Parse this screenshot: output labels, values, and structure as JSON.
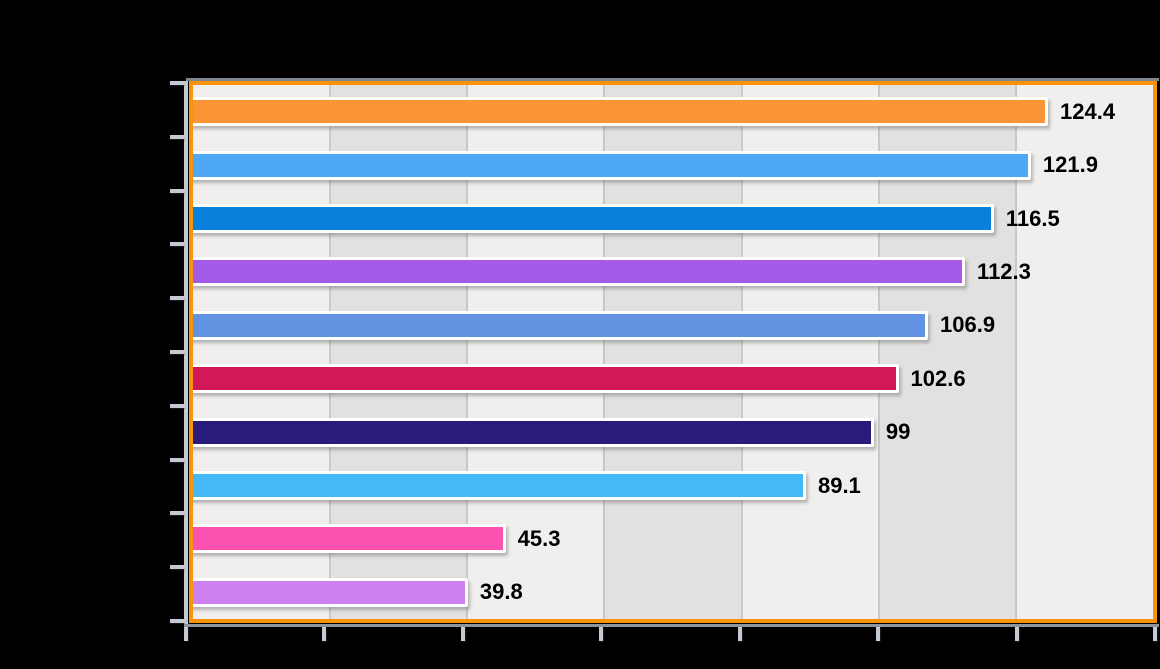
{
  "chart_data": {
    "type": "bar",
    "orientation": "horizontal",
    "values": [
      124.4,
      121.9,
      116.5,
      112.3,
      106.9,
      102.6,
      99,
      89.1,
      45.3,
      39.8
    ],
    "value_labels": [
      "124.4",
      "121.9",
      "116.5",
      "112.3",
      "106.9",
      "102.6",
      "99",
      "89.1",
      "45.3",
      "39.8"
    ],
    "bar_colors": [
      "#F99535",
      "#4FA8F3",
      "#0880DC",
      "#A35BE8",
      "#6292E2",
      "#D21858",
      "#281B7C",
      "#45B9F5",
      "#FB51B1",
      "#CD80F0"
    ],
    "xlim": [
      0,
      140
    ],
    "x_tick_interval": 20,
    "x_tick_count": 8,
    "y_tick_count": 11,
    "grid": "alternating-vertical-bands",
    "legend": "none",
    "title_visible": false,
    "axis_tick_labels_visible": false,
    "value_labels_position": "right-of-bar"
  },
  "style": {
    "canvas_background": "#000000",
    "frame_color": "#F7930D",
    "plot_band_light": "#F0EFED",
    "plot_band_dark": "#E2E1E0",
    "gridline_color": "#C8C8C6",
    "axis_line_color": "#C4CAD4",
    "axis_shadow_top": "#81878F",
    "axis_shadow_bottom": "#8E949D",
    "bar_outline_color": "#FFFFFF",
    "value_label_color": "#000000"
  }
}
